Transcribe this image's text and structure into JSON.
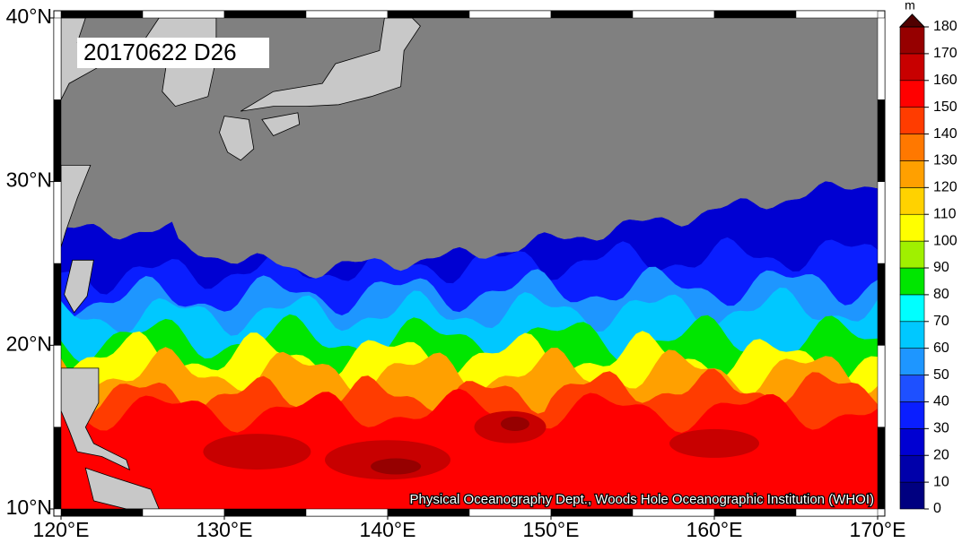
{
  "title": "20170622 D26",
  "credit": "Physical Oceanography Dept., Woods Hole Oceanographic Institution (WHOI)",
  "map": {
    "lon_range": [
      120,
      170
    ],
    "lat_range": [
      10,
      40
    ],
    "lon_ticks": [
      {
        "value": 120,
        "label": "120°E"
      },
      {
        "value": 130,
        "label": "130°E"
      },
      {
        "value": 140,
        "label": "140°E"
      },
      {
        "value": 150,
        "label": "150°E"
      },
      {
        "value": 160,
        "label": "160°E"
      },
      {
        "value": 170,
        "label": "170°E"
      }
    ],
    "lat_ticks": [
      {
        "value": 10,
        "label": "10°N"
      },
      {
        "value": 20,
        "label": "20°N"
      },
      {
        "value": 30,
        "label": "30°N"
      },
      {
        "value": 40,
        "label": "40°N"
      }
    ]
  },
  "colorbar": {
    "unit": "m",
    "range": [
      0,
      180
    ],
    "ticks": [
      0,
      10,
      20,
      30,
      40,
      50,
      60,
      70,
      80,
      90,
      100,
      110,
      120,
      130,
      140,
      150,
      160,
      170,
      180
    ],
    "colors": [
      "#000080",
      "#0000aa",
      "#0000d2",
      "#0a1eff",
      "#1e50ff",
      "#1e96ff",
      "#00c8ff",
      "#00ffff",
      "#00e600",
      "#a0f000",
      "#ffff00",
      "#ffd200",
      "#ffa000",
      "#ff7800",
      "#ff3c00",
      "#ff0000",
      "#c80000",
      "#960000",
      "#500000"
    ]
  }
}
